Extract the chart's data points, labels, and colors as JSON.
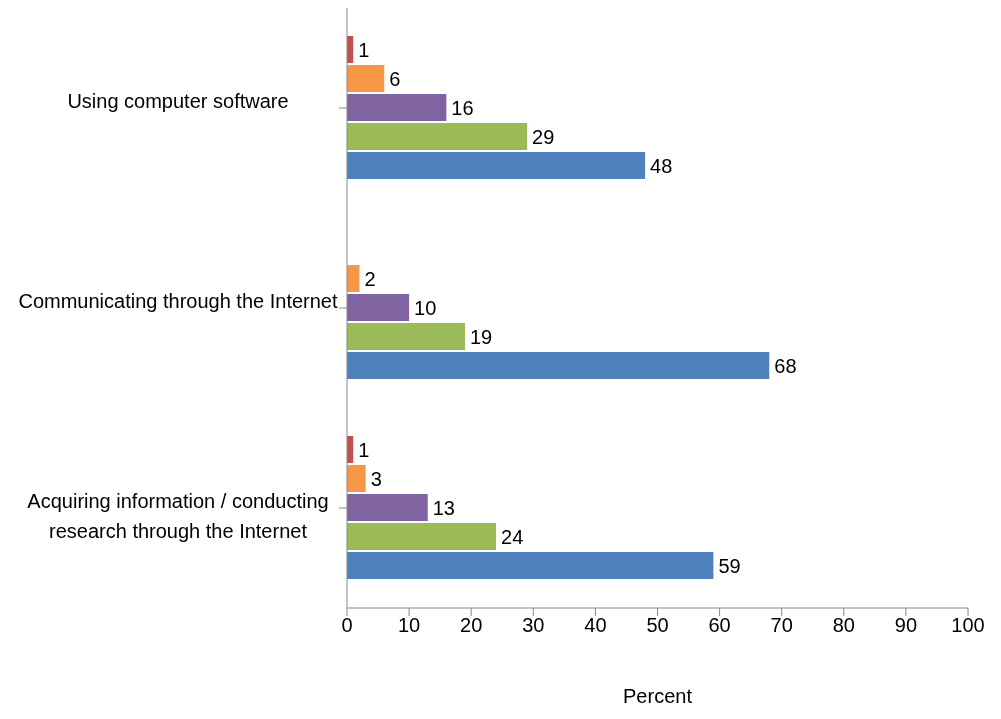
{
  "chart_data": {
    "type": "bar",
    "orientation": "horizontal",
    "xlabel": "Percent",
    "categories": [
      "Using computer software",
      "Communicating through the Internet",
      "Acquiring information / conducting research through the Internet"
    ],
    "series": [
      {
        "color": "#c0504d",
        "values": [
          1,
          null,
          1
        ]
      },
      {
        "color": "#f79646",
        "values": [
          6,
          2,
          3
        ]
      },
      {
        "color": "#8064a2",
        "values": [
          16,
          10,
          13
        ]
      },
      {
        "color": "#9bbb59",
        "values": [
          29,
          19,
          24
        ]
      },
      {
        "color": "#4f81bd",
        "values": [
          48,
          68,
          59
        ]
      }
    ],
    "xlim": [
      0,
      100
    ],
    "xticks": [
      0,
      10,
      20,
      30,
      40,
      50,
      60,
      70,
      80,
      90,
      100
    ],
    "data_labels": true,
    "grid": false,
    "legend": false
  }
}
